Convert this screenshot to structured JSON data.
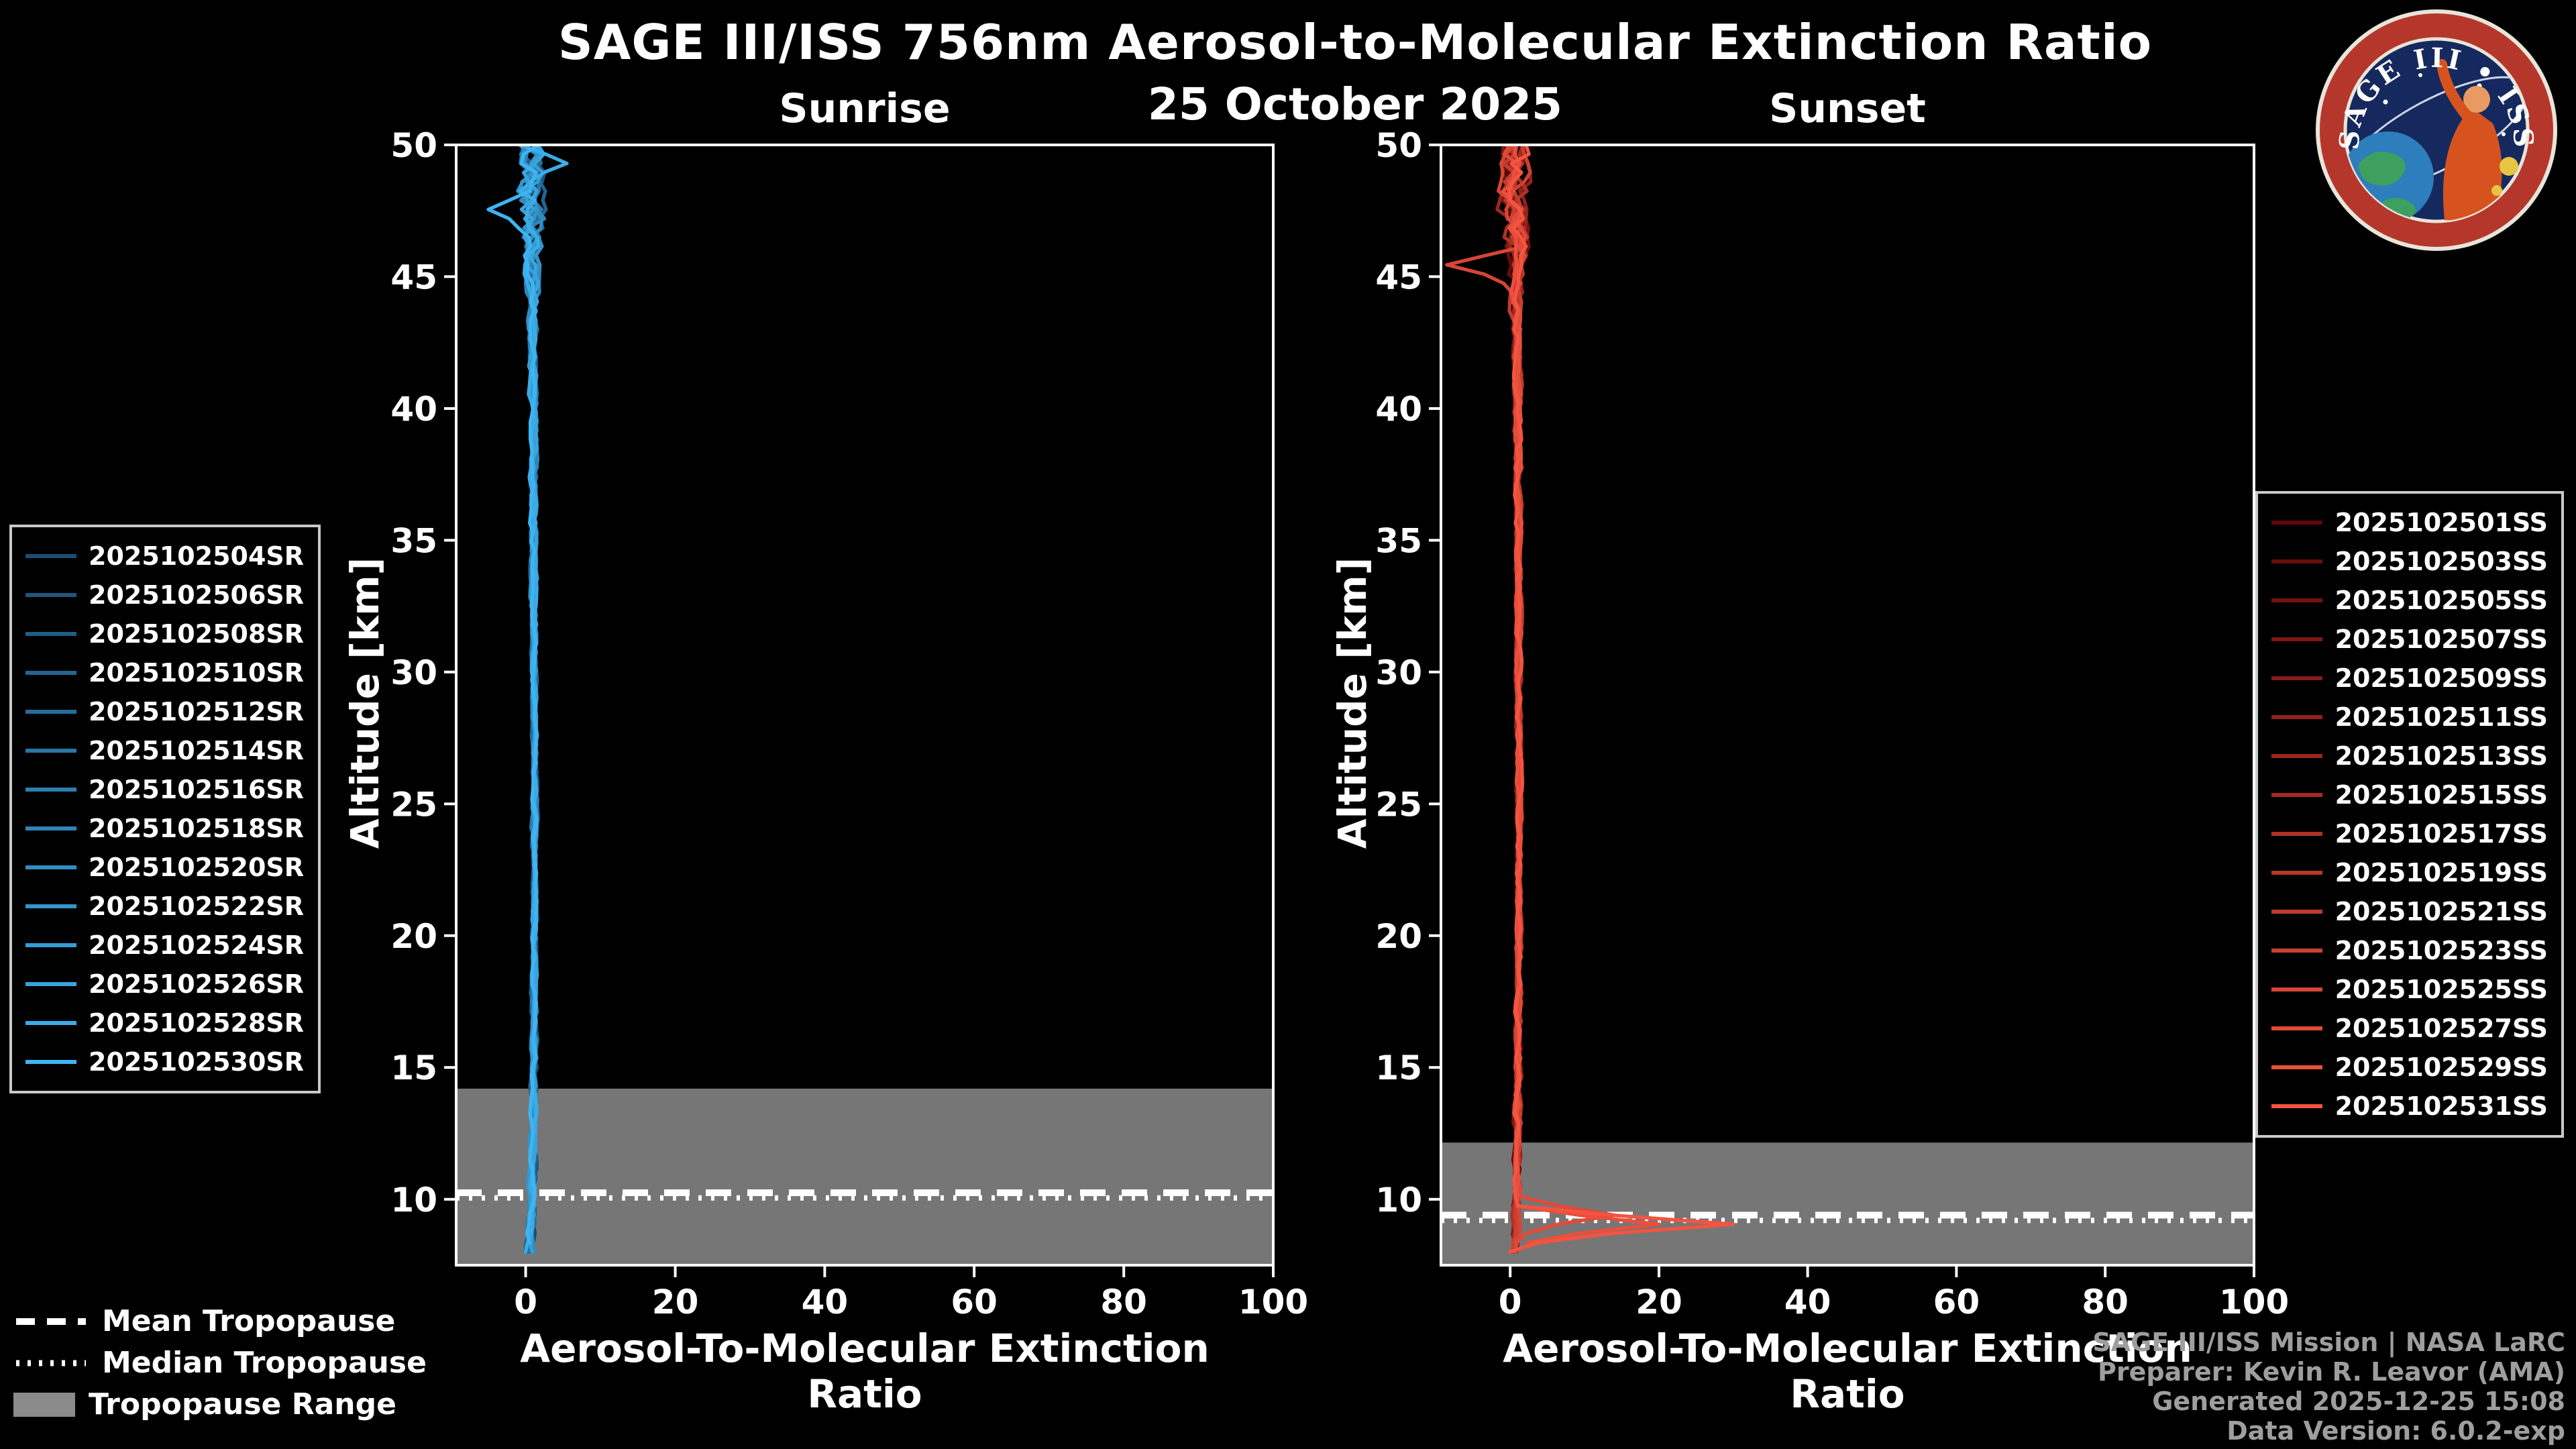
{
  "title": "SAGE III/ISS 756nm Aerosol-to-Molecular Extinction Ratio",
  "date": "25 October 2025",
  "logo": {
    "text": "SAGE III • ISS"
  },
  "figure_legend": {
    "mean_label": "Mean Tropopause",
    "median_label": "Median Tropopause",
    "range_label": "Tropopause Range"
  },
  "credits": [
    "SAGE III/ISS Mission | NASA LaRC",
    "Preparer: Kevin R. Leavor (AMA)",
    "Generated 2025-12-25 15:08",
    "Data Version: 6.0.2-exp"
  ],
  "colors": {
    "background": "#000000",
    "foreground": "#ffffff",
    "tropopause_band": "#8b8b8b",
    "credits_text": "#9e9e9e"
  },
  "chart_data": [
    {
      "type": "line",
      "panel": "sunrise",
      "title": "Sunrise",
      "xlabel": "Aerosol-To-Molecular Extinction Ratio",
      "ylabel": "Altitude [km]",
      "xlim": [
        -9.3,
        100
      ],
      "ylim": [
        7.5,
        50
      ],
      "xticks": [
        0,
        20,
        40,
        60,
        80,
        100
      ],
      "yticks": [
        10,
        15,
        20,
        25,
        30,
        35,
        40,
        45,
        50
      ],
      "grid": false,
      "legend_position": "outside-left",
      "tropopause": {
        "mean_km": 10.25,
        "median_km": 10.05,
        "range_top_km": 14.2,
        "range_bottom_km": 7.5
      },
      "base_profile": [
        [
          50,
          0.6
        ],
        [
          46,
          0.9
        ],
        [
          40,
          1.0
        ],
        [
          25,
          1.2
        ],
        [
          15,
          1.1
        ],
        [
          10,
          0.9
        ],
        [
          7.5,
          0.5
        ]
      ],
      "noise_profile": [
        [
          50,
          1.8
        ],
        [
          47,
          1.6
        ],
        [
          45,
          0.8
        ],
        [
          42,
          0.5
        ],
        [
          30,
          0.35
        ],
        [
          20,
          0.35
        ],
        [
          12,
          0.45
        ],
        [
          7.5,
          0.5
        ]
      ],
      "features": [
        {
          "series_index": 13,
          "altitude_km": 47.6,
          "peak_value": -5
        },
        {
          "series_index": 12,
          "altitude_km": 49.3,
          "peak_value": 5.5
        }
      ],
      "series": [
        {
          "name": "2025102504SR",
          "color": "#1b4f72"
        },
        {
          "name": "2025102506SR",
          "color": "#1e577c"
        },
        {
          "name": "2025102508SR",
          "color": "#205f86"
        },
        {
          "name": "2025102510SR",
          "color": "#236690"
        },
        {
          "name": "2025102512SR",
          "color": "#266e99"
        },
        {
          "name": "2025102514SR",
          "color": "#2876a3"
        },
        {
          "name": "2025102516SR",
          "color": "#2b7ead"
        },
        {
          "name": "2025102518SR",
          "color": "#2e85b7"
        },
        {
          "name": "2025102520SR",
          "color": "#318dc1"
        },
        {
          "name": "2025102522SR",
          "color": "#3395cb"
        },
        {
          "name": "2025102524SR",
          "color": "#369dd4"
        },
        {
          "name": "2025102526SR",
          "color": "#39a4de"
        },
        {
          "name": "2025102528SR",
          "color": "#3bace8"
        },
        {
          "name": "2025102530SR",
          "color": "#3eb4f2"
        }
      ]
    },
    {
      "type": "line",
      "panel": "sunset",
      "title": "Sunset",
      "xlabel": "Aerosol-To-Molecular Extinction Ratio",
      "ylabel": "Altitude [km]",
      "xlim": [
        -9.3,
        100
      ],
      "ylim": [
        7.5,
        50
      ],
      "xticks": [
        0,
        20,
        40,
        60,
        80,
        100
      ],
      "yticks": [
        10,
        15,
        20,
        25,
        30,
        35,
        40,
        45,
        50
      ],
      "grid": false,
      "legend_position": "outside-right",
      "tropopause": {
        "mean_km": 9.4,
        "median_km": 9.2,
        "range_top_km": 12.15,
        "range_bottom_km": 7.5
      },
      "base_profile": [
        [
          50,
          0.6
        ],
        [
          46,
          0.9
        ],
        [
          40,
          1.0
        ],
        [
          25,
          1.2
        ],
        [
          15,
          1.1
        ],
        [
          10,
          0.9
        ],
        [
          7.5,
          0.5
        ]
      ],
      "noise_profile": [
        [
          50,
          1.9
        ],
        [
          47,
          1.7
        ],
        [
          45,
          0.9
        ],
        [
          42,
          0.5
        ],
        [
          30,
          0.35
        ],
        [
          20,
          0.35
        ],
        [
          12,
          0.45
        ],
        [
          7.5,
          0.5
        ]
      ],
      "features": [
        {
          "series_index": 15,
          "altitude_km": 9.0,
          "peak_value": 30
        },
        {
          "series_index": 14,
          "altitude_km": 8.9,
          "peak_value": 20
        },
        {
          "series_index": 13,
          "altitude_km": 9.3,
          "peak_value": 14
        },
        {
          "series_index": 12,
          "altitude_km": 45.5,
          "peak_value": -8.5
        }
      ],
      "series": [
        {
          "name": "2025102501SS",
          "color": "#600808"
        },
        {
          "name": "2025102503SS",
          "color": "#6a0d0c"
        },
        {
          "name": "2025102505SS",
          "color": "#74120f"
        },
        {
          "name": "2025102507SS",
          "color": "#7e1713"
        },
        {
          "name": "2025102509SS",
          "color": "#871c17"
        },
        {
          "name": "2025102511SS",
          "color": "#91211b"
        },
        {
          "name": "2025102513SS",
          "color": "#9b261e"
        },
        {
          "name": "2025102515SS",
          "color": "#a52b22"
        },
        {
          "name": "2025102517SS",
          "color": "#af3126"
        },
        {
          "name": "2025102519SS",
          "color": "#b9362a"
        },
        {
          "name": "2025102521SS",
          "color": "#c33b2d"
        },
        {
          "name": "2025102523SS",
          "color": "#cc4031"
        },
        {
          "name": "2025102525SS",
          "color": "#d64535"
        },
        {
          "name": "2025102527SS",
          "color": "#e04a39"
        },
        {
          "name": "2025102529SS",
          "color": "#ea4f3c"
        },
        {
          "name": "2025102531SS",
          "color": "#f45440"
        }
      ]
    }
  ]
}
